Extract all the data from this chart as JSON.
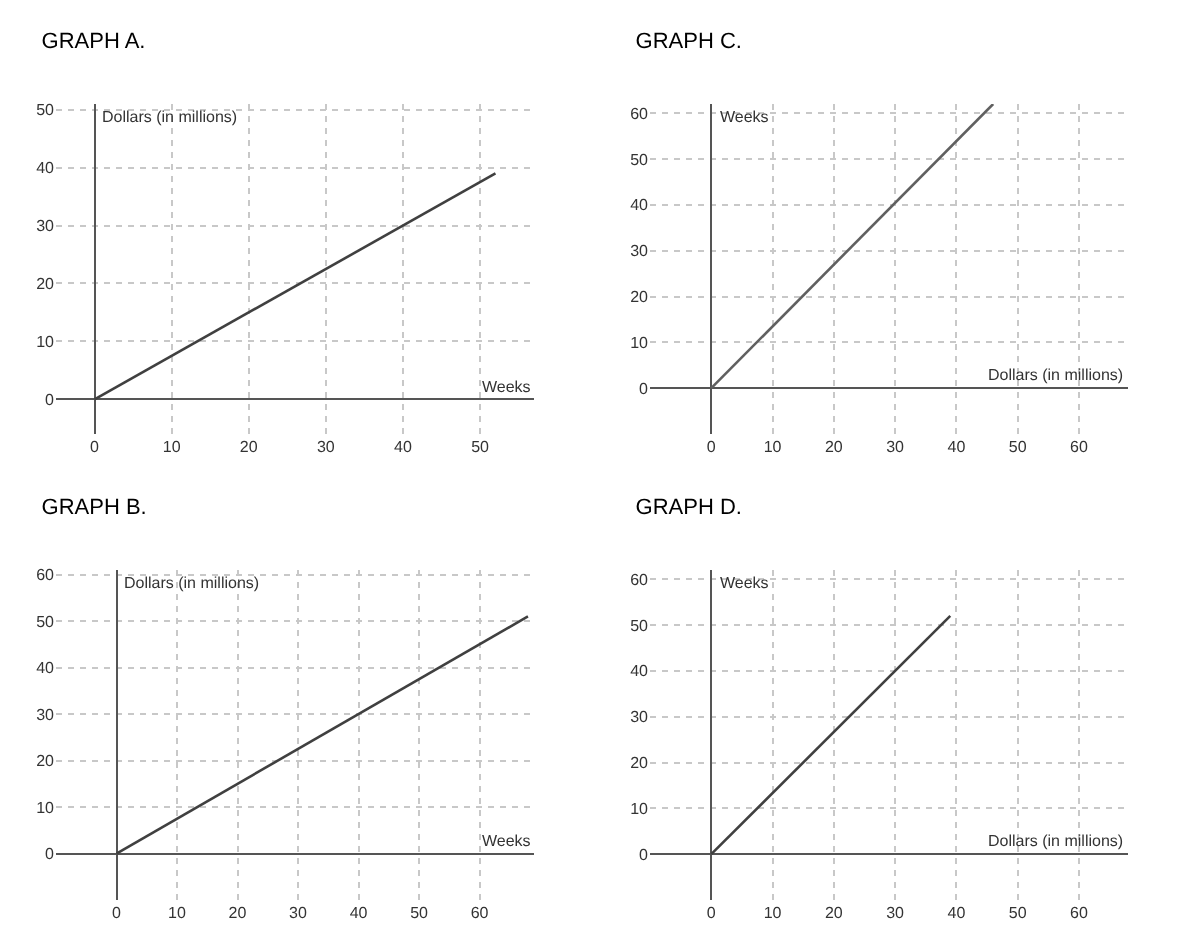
{
  "chart_data": [
    {
      "type": "line",
      "title": "GRAPH A.",
      "xlabel": "Weeks",
      "ylabel": "Dollars (in millions)",
      "x": [
        0,
        52
      ],
      "series": [
        {
          "color": "#404040",
          "values": [
            0,
            39
          ]
        }
      ],
      "xlim": [
        -5,
        57
      ],
      "ylim": [
        -6,
        51
      ],
      "xticks": [
        0,
        10,
        20,
        30,
        40,
        50
      ],
      "yticks": [
        0,
        10,
        20,
        30,
        40,
        50
      ],
      "grid": true
    },
    {
      "type": "line",
      "title": "GRAPH C.",
      "xlabel": "Dollars (in millions)",
      "ylabel": "Weeks",
      "x": [
        0,
        46
      ],
      "series": [
        {
          "color": "#606060",
          "values": [
            0,
            62
          ]
        }
      ],
      "xlim": [
        -10,
        68
      ],
      "ylim": [
        -10,
        62
      ],
      "xticks": [
        0,
        10,
        20,
        30,
        40,
        50,
        60
      ],
      "yticks": [
        0,
        10,
        20,
        30,
        40,
        50,
        60
      ],
      "grid": true
    },
    {
      "type": "line",
      "title": "GRAPH B.",
      "xlabel": "Weeks",
      "ylabel": "Dollars (in millions)",
      "x": [
        0,
        68
      ],
      "series": [
        {
          "color": "#404040",
          "values": [
            0,
            51
          ]
        }
      ],
      "xlim": [
        -10,
        69
      ],
      "ylim": [
        -10,
        61
      ],
      "xticks": [
        0,
        10,
        20,
        30,
        40,
        50,
        60
      ],
      "yticks": [
        0,
        10,
        20,
        30,
        40,
        50,
        60
      ],
      "grid": true
    },
    {
      "type": "line",
      "title": "GRAPH D.",
      "xlabel": "Dollars (in millions)",
      "ylabel": "Weeks",
      "x": [
        0,
        39
      ],
      "series": [
        {
          "color": "#404040",
          "values": [
            0,
            52
          ]
        }
      ],
      "xlim": [
        -10,
        68
      ],
      "ylim": [
        -10,
        62
      ],
      "xticks": [
        0,
        10,
        20,
        30,
        40,
        50,
        60
      ],
      "yticks": [
        0,
        10,
        20,
        30,
        40,
        50,
        60
      ],
      "grid": true
    }
  ]
}
